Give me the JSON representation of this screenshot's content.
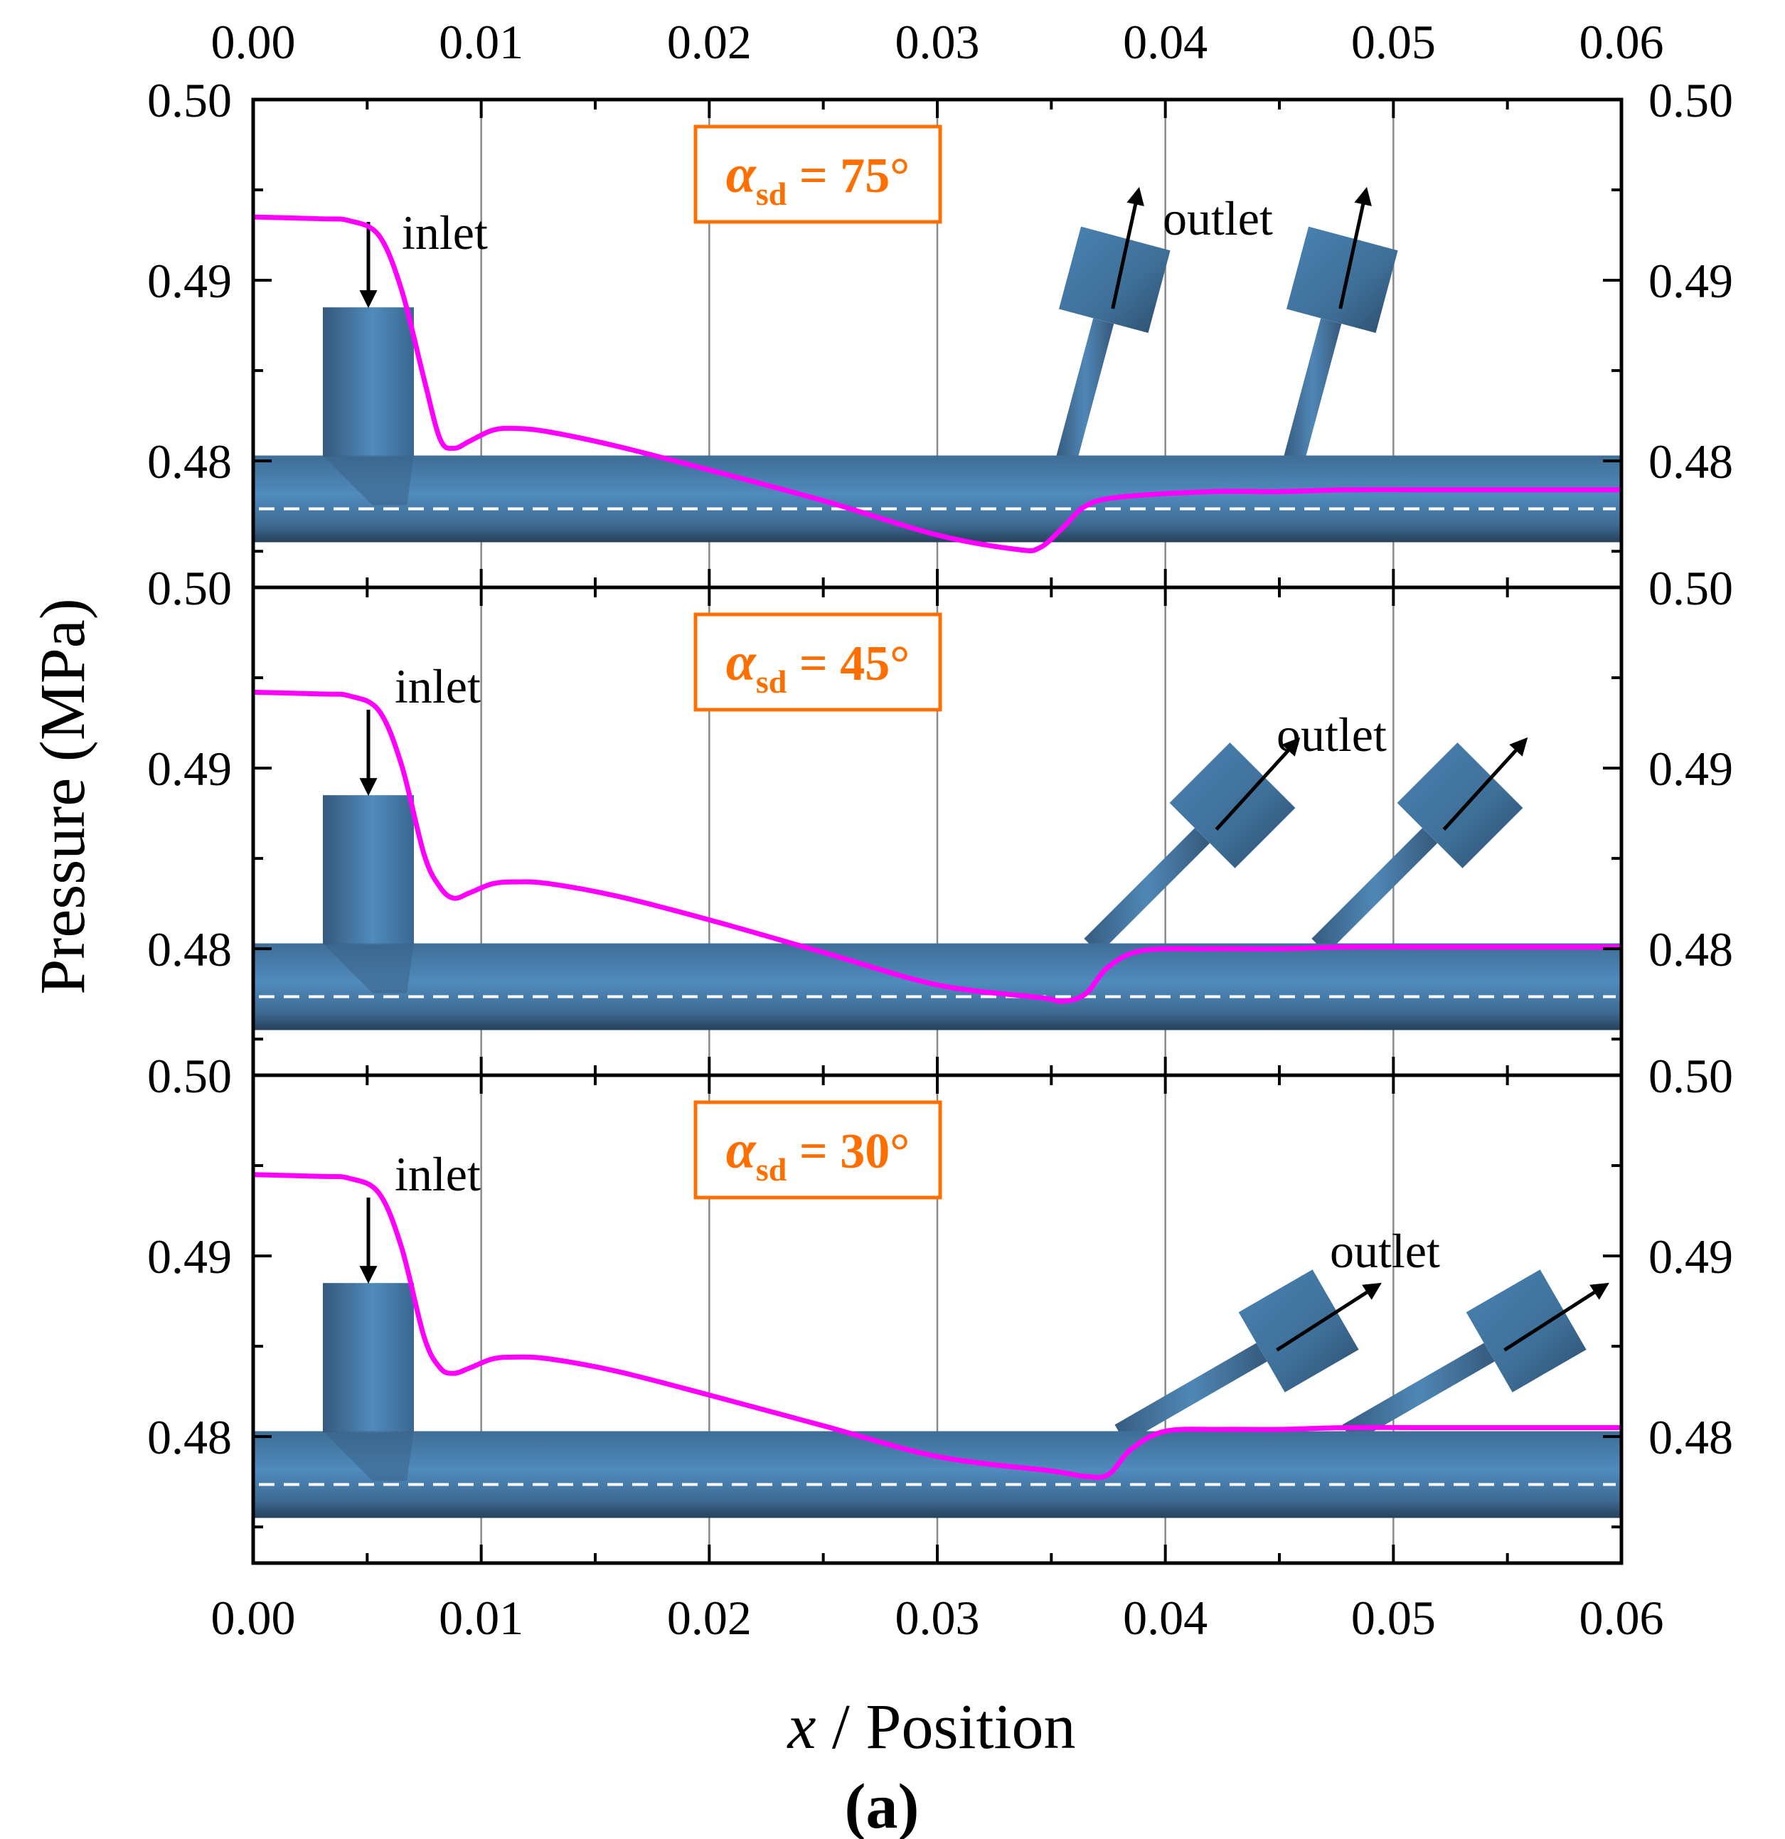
{
  "chart_data": {
    "type": "line",
    "xlim": [
      0,
      0.06
    ],
    "ylim": [
      0.473,
      0.5
    ],
    "x_ticks": [
      "0.00",
      "0.01",
      "0.02",
      "0.03",
      "0.04",
      "0.05",
      "0.06"
    ],
    "x_tick_values": [
      0,
      0.01,
      0.02,
      0.03,
      0.04,
      0.05,
      0.06
    ],
    "y_ticks": [
      "0.48",
      "0.49",
      "0.50"
    ],
    "y_tick_values": [
      0.48,
      0.49,
      0.5
    ],
    "xlabel_italic": "x",
    "xlabel_rest": " / Position",
    "ylabel": "Pressure (MPa)",
    "figure_label": "(a)",
    "inlet_label": "inlet",
    "outlet_label": "outlet",
    "panels": [
      {
        "alpha_symbol": "α",
        "alpha_subscript": "sd",
        "alpha_value": " = 75°",
        "outlet_angle_deg": 75,
        "series": {
          "name": "Pressure",
          "x": [
            0,
            0.003,
            0.0042,
            0.0055,
            0.0065,
            0.0075,
            0.0082,
            0.0088,
            0.0095,
            0.0105,
            0.0115,
            0.013,
            0.016,
            0.02,
            0.025,
            0.03,
            0.0335,
            0.0345,
            0.0355,
            0.0365,
            0.038,
            0.042,
            0.045,
            0.048,
            0.052,
            0.06
          ],
          "y": [
            0.4935,
            0.4934,
            0.4933,
            0.4925,
            0.4895,
            0.4845,
            0.4812,
            0.4807,
            0.4811,
            0.4817,
            0.4818,
            0.4816,
            0.4808,
            0.4795,
            0.4778,
            0.4759,
            0.4751,
            0.4752,
            0.4763,
            0.4775,
            0.478,
            0.4783,
            0.4783,
            0.4784,
            0.4784,
            0.4784
          ]
        }
      },
      {
        "alpha_symbol": "α",
        "alpha_subscript": "sd",
        "alpha_value": " = 45°",
        "outlet_angle_deg": 45,
        "series": {
          "name": "Pressure",
          "x": [
            0,
            0.003,
            0.0042,
            0.0055,
            0.0065,
            0.0075,
            0.0082,
            0.0088,
            0.0095,
            0.0105,
            0.0115,
            0.013,
            0.016,
            0.02,
            0.025,
            0.03,
            0.0345,
            0.0355,
            0.0365,
            0.0375,
            0.039,
            0.042,
            0.045,
            0.048,
            0.052,
            0.06
          ],
          "y": [
            0.4942,
            0.4941,
            0.494,
            0.4932,
            0.4902,
            0.4852,
            0.4834,
            0.4828,
            0.4831,
            0.4836,
            0.4837,
            0.4836,
            0.4829,
            0.4816,
            0.4798,
            0.478,
            0.4773,
            0.4771,
            0.4775,
            0.479,
            0.4799,
            0.48,
            0.48,
            0.4801,
            0.4801,
            0.4801
          ]
        }
      },
      {
        "alpha_symbol": "α",
        "alpha_subscript": "sd",
        "alpha_value": " = 30°",
        "outlet_angle_deg": 30,
        "series": {
          "name": "Pressure",
          "x": [
            0,
            0.003,
            0.0042,
            0.0055,
            0.0065,
            0.0075,
            0.0082,
            0.0088,
            0.0095,
            0.0105,
            0.0115,
            0.013,
            0.016,
            0.02,
            0.025,
            0.03,
            0.035,
            0.0365,
            0.0375,
            0.0385,
            0.04,
            0.0425,
            0.045,
            0.048,
            0.052,
            0.06
          ],
          "y": [
            0.4945,
            0.4944,
            0.4943,
            0.4935,
            0.4905,
            0.4855,
            0.4838,
            0.4835,
            0.4838,
            0.4843,
            0.4844,
            0.4843,
            0.4836,
            0.4823,
            0.4806,
            0.4789,
            0.4781,
            0.4778,
            0.4779,
            0.4793,
            0.4803,
            0.4804,
            0.4804,
            0.4805,
            0.4805,
            0.4805
          ]
        }
      }
    ]
  }
}
